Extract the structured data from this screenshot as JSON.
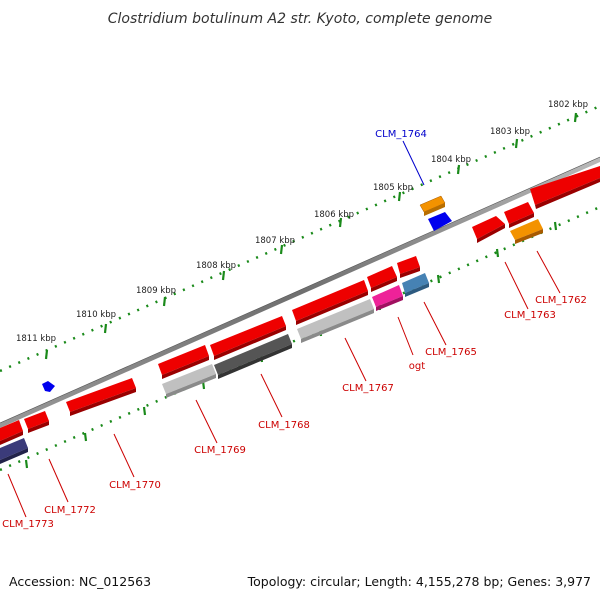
{
  "title": "Clostridium botulinum A2 str. Kyoto, complete genome",
  "footer": {
    "accession": "Accession: NC_012563",
    "summary": "Topology: circular; Length: 4,155,278 bp; Genes: 3,977"
  },
  "scale_labels": [
    "1802 kbp",
    "1803 kbp",
    "1804 kbp",
    "1805 kbp",
    "1806 kbp",
    "1807 kbp",
    "1808 kbp",
    "1809 kbp",
    "1810 kbp",
    "1811 kbp"
  ],
  "gene_labels": [
    "CLM_1764",
    "CLM_1762",
    "CLM_1763",
    "CLM_1765",
    "ogt",
    "CLM_1767",
    "CLM_1768",
    "CLM_1769",
    "CLM_1770",
    "CLM_1772",
    "CLM_1773"
  ],
  "colors": {
    "red": "#ee0000",
    "orange": "#f39200",
    "blue": "#0000ee",
    "magenta": "#ee2299",
    "steelblue": "#4682b4",
    "darkgray": "#555555",
    "lightgray": "#c0c0c0",
    "navy": "#3b3b7a",
    "backbone": "#777777",
    "tick": "#1a8a1a",
    "label_red": "#cc0000",
    "label_blue": "#0000cc"
  }
}
